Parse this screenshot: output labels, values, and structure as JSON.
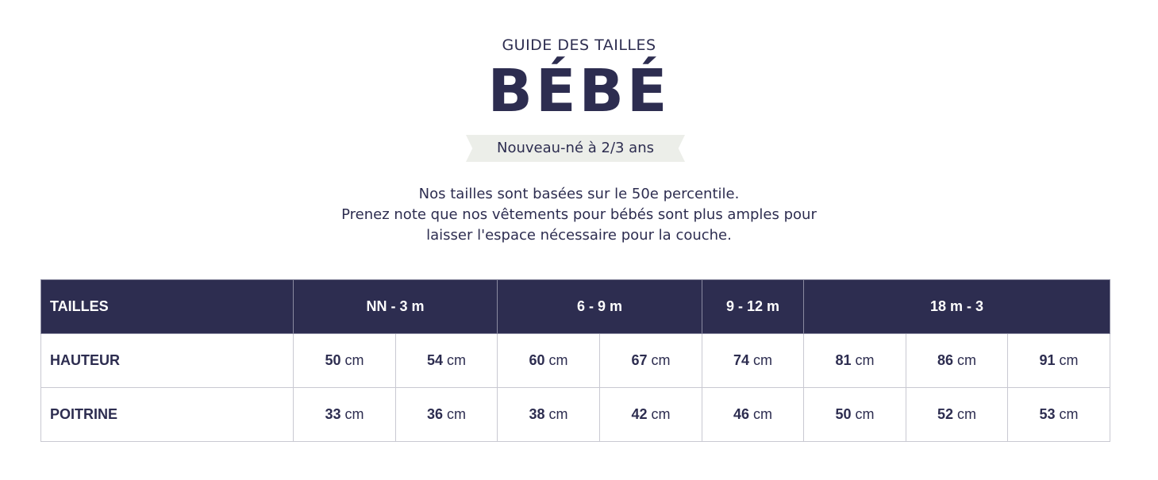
{
  "header": {
    "kicker": "GUIDE DES TAILLES",
    "title": "BÉBÉ",
    "ribbon": "Nouveau-né à 2/3 ans"
  },
  "intro": [
    "Nos tailles sont basées sur le 50e percentile.",
    "Prenez note que nos vêtements pour bébés sont plus amples pour",
    "laisser l'espace nécessaire pour la couche."
  ],
  "table": {
    "header_label": "TAILLES",
    "groups": [
      "NN - 3 m",
      "6 - 9 m",
      "9 - 12 m",
      "18 m - 3"
    ],
    "unit": "cm",
    "rows": [
      {
        "label": "HAUTEUR",
        "values": [
          "50",
          "54",
          "60",
          "67",
          "74",
          "81",
          "86",
          "91"
        ]
      },
      {
        "label": "POITRINE",
        "values": [
          "33",
          "36",
          "38",
          "42",
          "46",
          "50",
          "52",
          "53"
        ]
      }
    ]
  },
  "colors": {
    "navy": "#2d2d50",
    "ribbon": "#eceee9"
  }
}
